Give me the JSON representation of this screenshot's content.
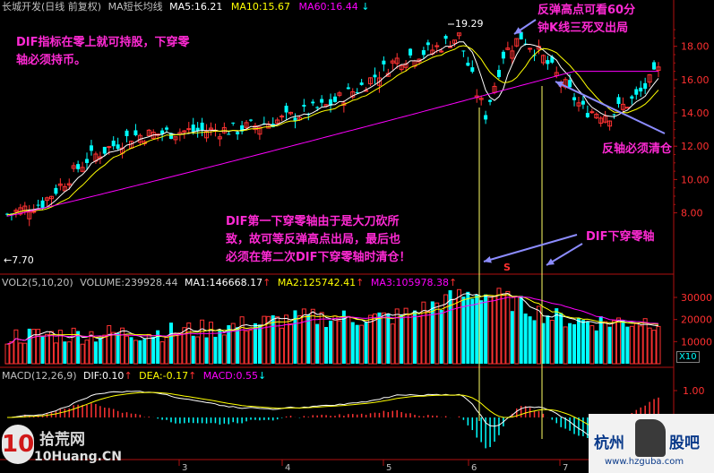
{
  "header": {
    "title": "长城开发(日线 前复权)",
    "ma_group": "MA短长均线",
    "ma5": "MA5:16.21",
    "ma10": "MA10:15.67",
    "ma60": "MA60:16.44",
    "ma60_arrow": "↓"
  },
  "volume_header": {
    "vol": "VOL2(5,10,20)",
    "volume": "VOLUME:239928.44",
    "ma1": "MA1:146668.17",
    "ma1_arrow": "↑",
    "ma2": "MA2:125742.41",
    "ma2_arrow": "↑",
    "ma3": "MA3:105978.38",
    "ma3_arrow": "↑"
  },
  "macd_header": {
    "macd": "MACD(12,26,9)",
    "dif": "DIF:0.10",
    "dif_arrow": "↑",
    "dea": "DEA:-0.17",
    "dea_arrow": "↑",
    "macd_val": "MACD:0.55",
    "macd_arrow": "↓"
  },
  "annotations": {
    "dif_hold": [
      "DIF指标在零上就可持股，下穿零",
      "轴必须持币。"
    ],
    "rebound": [
      "反弹高点可看60分",
      "钟K线三死叉出局"
    ],
    "reaxis": "反轴必须清仓",
    "first_cross": [
      "DIF第一下穿零轴由于是大刀砍所",
      "致，故可等反弹高点出局，最后也",
      "必须在第二次DIF下穿零轴时清仓！"
    ],
    "dif_cross": "DIF下穿零轴"
  },
  "marks": {
    "high": "19.29",
    "low": "←7.70",
    "s_marker": "S",
    "x10": "X10"
  },
  "watermarks": {
    "left_brand": "拾荒网",
    "left_url": "10Huang.CN",
    "right_brand_a": "杭州",
    "right_brand_b": "股吧",
    "right_url": "www.hzguba.com"
  },
  "chart_data": [
    {
      "type": "candlestick",
      "title": "长城开发(日线 前复权)",
      "yticks": [
        8.0,
        10.0,
        12.0,
        14.0,
        16.0,
        18.0
      ],
      "ylim": [
        7.0,
        19.5
      ],
      "xticks": [
        "3",
        "4",
        "5",
        "6",
        "7"
      ],
      "grid": false,
      "series": [
        {
          "name": "MA5",
          "color": "#ffffff"
        },
        {
          "name": "MA10",
          "color": "#ffff00"
        },
        {
          "name": "MA60",
          "color": "#ff00ff"
        }
      ],
      "high_label": 19.29,
      "low_label": 7.7
    },
    {
      "type": "bar",
      "title": "VOL2(5,10,20)",
      "yticks": [
        10000,
        20000,
        30000
      ],
      "ylim": [
        0,
        36000
      ],
      "series": [
        {
          "name": "MA1",
          "color": "#ffffff"
        },
        {
          "name": "MA2",
          "color": "#ffff00"
        },
        {
          "name": "MA3",
          "color": "#ff00ff"
        }
      ]
    },
    {
      "type": "line",
      "title": "MACD(12,26,9)",
      "yticks": [
        1.0
      ],
      "series": [
        {
          "name": "DIF",
          "color": "#ffffff"
        },
        {
          "name": "DEA",
          "color": "#ffff00"
        },
        {
          "name": "MACD",
          "color": "#ff00ff"
        }
      ]
    }
  ]
}
